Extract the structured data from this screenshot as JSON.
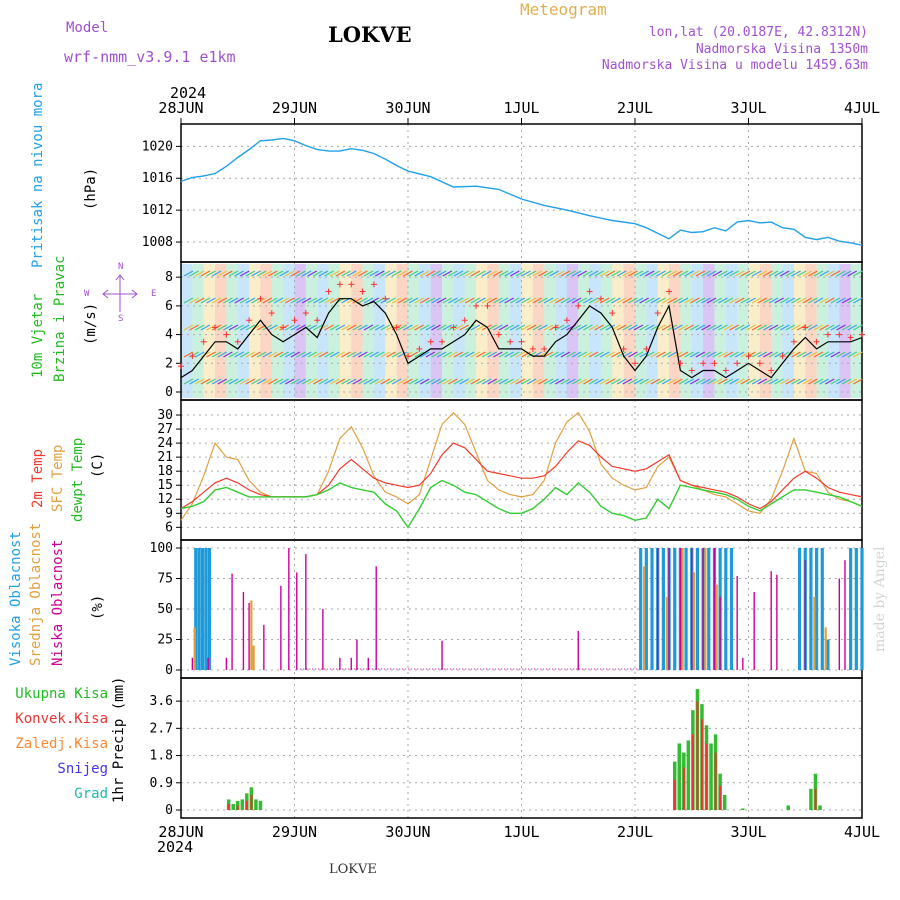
{
  "header": {
    "model_label": "Model",
    "model_name": "wrf-nmm_v3.9.1 e1km",
    "station": "LOKVE",
    "meteogram": "Meteogram",
    "lonlat": "lon,lat (20.0187E, 42.8312N)",
    "elevation": "Nadmorska Visina 1350m",
    "model_elevation": "Nadmorska Visina u modelu 1459.63m",
    "year_top": "2024",
    "year_bottom": "2024",
    "footer_station": "LOKVE",
    "credit": "made by Angel"
  },
  "colors": {
    "pressure": "#22a0e8",
    "temp2m": "#ef3b2c",
    "sfc": "#e0a040",
    "dew": "#33cc33",
    "wind_speed": "#000000",
    "gust": "#ff3030",
    "cloud_high": "#1f9ad8",
    "cloud_mid": "#e0a040",
    "cloud_low": "#cc0099",
    "precip_total": "#33bb33",
    "precip_conv": "#ee3333",
    "precip_frozen": "#ff8833",
    "snow": "#4433ee",
    "graupel": "#22bbaa",
    "grid": "#aaaaaa"
  },
  "x_ticks": [
    "28JUN",
    "29JUN",
    "30JUN",
    "1JUL",
    "2JUL",
    "3JUL",
    "4JUL"
  ],
  "labels": {
    "pressure": [
      "Pritisak na nivou mora",
      "(hPa)"
    ],
    "wind": [
      "10m Vjetar",
      "Brzina i Pravac",
      "(m/s)"
    ],
    "compass": {
      "n": "N",
      "w": "W",
      "e": "E",
      "s": "S"
    },
    "temp": [
      "2m Temp",
      "SFC Temp",
      "dewpt Temp",
      "(C)"
    ],
    "cloud": [
      "Visoka Oblacnost",
      "Srednja Oblacnost",
      "Niska Oblacnost",
      "(%)"
    ],
    "precip_legend": [
      "Ukupna Kisa",
      "Konvek.Kisa",
      "Zaledj.Kisa",
      "Snijeg",
      "Grad"
    ],
    "precip_axis": "1hr Precip (mm)"
  },
  "chart_data": [
    {
      "type": "line",
      "name": "pressure",
      "x_range": [
        0,
        6
      ],
      "ylim": [
        1006.5,
        1021.8
      ],
      "yticks": [
        "1008",
        "1012",
        "1016",
        "1020"
      ],
      "x": [
        0,
        0.1,
        0.2,
        0.3,
        0.4,
        0.5,
        0.6,
        0.7,
        0.8,
        0.9,
        1.0,
        1.1,
        1.2,
        1.3,
        1.4,
        1.5,
        1.6,
        1.7,
        1.8,
        1.9,
        2.0,
        2.2,
        2.4,
        2.6,
        2.8,
        3.0,
        3.2,
        3.4,
        3.6,
        3.8,
        4.0,
        4.1,
        4.2,
        4.3,
        4.4,
        4.5,
        4.6,
        4.7,
        4.8,
        4.9,
        5.0,
        5.1,
        5.2,
        5.3,
        5.4,
        5.5,
        5.6,
        5.7,
        5.8,
        5.9,
        6.0
      ],
      "y": [
        1015.6,
        1016.1,
        1016.3,
        1016.6,
        1017.5,
        1018.6,
        1019.6,
        1020.7,
        1020.8,
        1021.0,
        1020.7,
        1020.1,
        1019.6,
        1019.4,
        1019.4,
        1019.7,
        1019.5,
        1019.1,
        1018.4,
        1017.6,
        1016.9,
        1016.2,
        1014.9,
        1015.0,
        1014.6,
        1013.4,
        1012.6,
        1012.0,
        1011.3,
        1010.7,
        1010.3,
        1009.8,
        1009.1,
        1008.4,
        1009.5,
        1009.2,
        1009.3,
        1009.8,
        1009.4,
        1010.5,
        1010.7,
        1010.4,
        1010.5,
        1009.8,
        1009.6,
        1008.6,
        1008.3,
        1008.6,
        1008.1,
        1007.9,
        1007.6
      ]
    },
    {
      "type": "line",
      "name": "wind",
      "x_range": [
        0,
        6
      ],
      "ylim": [
        0,
        8.5
      ],
      "yticks": [
        "0",
        "2",
        "4",
        "6",
        "8"
      ],
      "x": [
        0,
        0.1,
        0.2,
        0.3,
        0.4,
        0.5,
        0.6,
        0.7,
        0.8,
        0.9,
        1.0,
        1.1,
        1.2,
        1.3,
        1.4,
        1.5,
        1.6,
        1.7,
        1.8,
        1.9,
        2.0,
        2.1,
        2.2,
        2.3,
        2.4,
        2.5,
        2.6,
        2.7,
        2.8,
        2.9,
        3.0,
        3.1,
        3.2,
        3.3,
        3.4,
        3.5,
        3.6,
        3.7,
        3.8,
        3.9,
        4.0,
        4.1,
        4.2,
        4.3,
        4.4,
        4.5,
        4.6,
        4.7,
        4.8,
        4.9,
        5.0,
        5.1,
        5.2,
        5.3,
        5.4,
        5.5,
        5.6,
        5.7,
        5.8,
        5.9,
        6.0
      ],
      "series": [
        {
          "role": "speed",
          "values": [
            1.0,
            1.5,
            2.5,
            3.5,
            3.5,
            3.0,
            4.0,
            5.0,
            4.0,
            3.5,
            4.0,
            4.5,
            3.8,
            5.5,
            6.5,
            6.5,
            6.0,
            6.3,
            5.5,
            4.0,
            2.0,
            2.5,
            3.0,
            3.0,
            3.5,
            4.0,
            5.0,
            4.5,
            3.0,
            3.0,
            3.0,
            2.5,
            2.5,
            3.5,
            4.0,
            5.0,
            6.0,
            5.5,
            4.5,
            2.5,
            1.5,
            2.5,
            4.5,
            6.0,
            1.5,
            1.0,
            1.5,
            1.5,
            1.0,
            1.5,
            2.0,
            1.5,
            1.0,
            2.0,
            3.0,
            3.8,
            3.0,
            3.5,
            3.5,
            3.5,
            3.8
          ]
        },
        {
          "role": "gust",
          "values": [
            1.8,
            2.5,
            3.5,
            4.5,
            4.0,
            3.5,
            5.0,
            6.5,
            5.5,
            4.5,
            5.0,
            5.5,
            5.0,
            7.0,
            7.5,
            7.5,
            7.0,
            7.5,
            6.5,
            4.5,
            2.5,
            3.0,
            3.5,
            3.5,
            4.5,
            5.0,
            6.0,
            6.0,
            4.0,
            3.5,
            3.5,
            3.0,
            3.0,
            4.5,
            5.0,
            6.0,
            7.0,
            6.5,
            5.5,
            3.0,
            2.0,
            3.0,
            5.5,
            7.0,
            2.0,
            1.5,
            2.0,
            2.0,
            1.5,
            2.0,
            2.5,
            2.0,
            1.5,
            2.5,
            3.5,
            4.5,
            3.5,
            4.0,
            4.0,
            3.8,
            4.0
          ]
        }
      ]
    },
    {
      "type": "line",
      "name": "temperature",
      "x_range": [
        0,
        6
      ],
      "ylim": [
        5,
        31.5
      ],
      "yticks": [
        "6",
        "9",
        "12",
        "15",
        "18",
        "21",
        "24",
        "27",
        "30"
      ],
      "x": [
        0,
        0.1,
        0.2,
        0.3,
        0.4,
        0.5,
        0.6,
        0.7,
        0.8,
        0.9,
        1.0,
        1.1,
        1.2,
        1.3,
        1.4,
        1.5,
        1.6,
        1.7,
        1.8,
        1.9,
        2.0,
        2.1,
        2.2,
        2.3,
        2.4,
        2.5,
        2.6,
        2.7,
        2.8,
        2.9,
        3.0,
        3.1,
        3.2,
        3.3,
        3.4,
        3.5,
        3.6,
        3.7,
        3.8,
        3.9,
        4.0,
        4.1,
        4.2,
        4.3,
        4.4,
        4.5,
        4.6,
        4.7,
        4.8,
        4.9,
        5.0,
        5.1,
        5.2,
        5.3,
        5.4,
        5.5,
        5.6,
        5.7,
        5.8,
        5.9,
        6.0
      ],
      "series": [
        {
          "role": "t2m",
          "values": [
            10.0,
            11.5,
            13.5,
            15.5,
            16.5,
            15.5,
            14.0,
            13.0,
            12.5,
            12.5,
            12.5,
            12.5,
            13.0,
            15.0,
            18.5,
            20.5,
            18.5,
            16.5,
            15.5,
            15.0,
            14.5,
            15.0,
            17.5,
            21.5,
            24.0,
            23.0,
            20.5,
            18.0,
            17.5,
            17.0,
            16.5,
            16.5,
            17.0,
            19.0,
            22.0,
            24.5,
            23.5,
            21.0,
            19.0,
            18.5,
            18.0,
            18.5,
            20.0,
            21.5,
            16.0,
            15.0,
            14.5,
            14.0,
            13.5,
            12.5,
            11.0,
            10.0,
            11.5,
            14.0,
            16.5,
            18.0,
            16.5,
            14.5,
            13.5,
            13.0,
            12.5
          ]
        },
        {
          "role": "sfc",
          "values": [
            7.5,
            11.0,
            17.0,
            24.0,
            21.0,
            20.5,
            16.0,
            13.5,
            12.5,
            12.5,
            12.5,
            12.5,
            13.0,
            18.0,
            25.0,
            27.5,
            23.0,
            17.0,
            13.5,
            12.5,
            11.0,
            13.0,
            20.5,
            28.0,
            30.5,
            28.0,
            22.0,
            16.0,
            14.0,
            13.0,
            12.5,
            13.0,
            16.0,
            24.0,
            28.5,
            30.5,
            26.5,
            19.5,
            16.5,
            15.0,
            14.0,
            14.5,
            19.0,
            21.0,
            16.0,
            15.0,
            14.0,
            13.0,
            12.5,
            11.0,
            9.5,
            9.0,
            12.0,
            18.0,
            25.0,
            18.0,
            17.5,
            13.5,
            12.0,
            11.5,
            10.5
          ]
        },
        {
          "role": "dew",
          "values": [
            10.0,
            10.5,
            11.5,
            14.0,
            14.5,
            13.5,
            12.5,
            12.5,
            12.5,
            12.5,
            12.5,
            12.5,
            13.0,
            14.0,
            15.5,
            14.5,
            14.0,
            13.5,
            11.0,
            9.5,
            6.0,
            10.0,
            14.5,
            16.0,
            15.0,
            13.5,
            13.0,
            11.5,
            10.0,
            9.0,
            9.0,
            10.0,
            12.0,
            14.5,
            13.0,
            15.5,
            13.5,
            10.5,
            9.0,
            8.5,
            7.5,
            8.0,
            12.0,
            10.0,
            15.0,
            14.5,
            14.0,
            13.5,
            13.0,
            12.0,
            10.5,
            9.5,
            11.0,
            12.5,
            14.0,
            14.0,
            13.5,
            13.0,
            12.5,
            11.5,
            10.5
          ]
        }
      ]
    },
    {
      "type": "bar",
      "name": "cloud_cover",
      "x_range": [
        0,
        6
      ],
      "ylim": [
        0,
        100
      ],
      "yticks": [
        "0",
        "25",
        "50",
        "75",
        "100"
      ],
      "series": [
        {
          "role": "high",
          "bars": [
            [
              0.13,
              100
            ],
            [
              0.16,
              100
            ],
            [
              0.19,
              100
            ],
            [
              0.22,
              100
            ],
            [
              0.25,
              100
            ],
            [
              4.05,
              100
            ],
            [
              4.1,
              100
            ],
            [
              4.15,
              100
            ],
            [
              4.2,
              100
            ],
            [
              4.25,
              100
            ],
            [
              4.3,
              100
            ],
            [
              4.35,
              100
            ],
            [
              4.4,
              100
            ],
            [
              4.45,
              100
            ],
            [
              4.5,
              100
            ],
            [
              4.55,
              100
            ],
            [
              4.6,
              100
            ],
            [
              4.65,
              100
            ],
            [
              4.7,
              100
            ],
            [
              4.75,
              100
            ],
            [
              4.8,
              100
            ],
            [
              4.85,
              100
            ],
            [
              5.45,
              100
            ],
            [
              5.5,
              100
            ],
            [
              5.55,
              100
            ],
            [
              5.6,
              100
            ],
            [
              5.65,
              100
            ],
            [
              5.7,
              25
            ],
            [
              5.9,
              100
            ],
            [
              5.95,
              100
            ],
            [
              6.0,
              100
            ]
          ]
        },
        {
          "role": "mid",
          "bars": [
            [
              0.12,
              35
            ],
            [
              0.62,
              57
            ],
            [
              0.64,
              20
            ],
            [
              4.08,
              85
            ],
            [
              4.28,
              60
            ],
            [
              4.42,
              100
            ],
            [
              4.52,
              80
            ],
            [
              4.62,
              100
            ],
            [
              4.72,
              70
            ],
            [
              5.58,
              60
            ],
            [
              5.68,
              35
            ]
          ]
        },
        {
          "role": "low",
          "bars": [
            [
              0.1,
              10
            ],
            [
              0.24,
              10
            ],
            [
              0.4,
              10
            ],
            [
              0.45,
              79
            ],
            [
              0.55,
              64
            ],
            [
              0.6,
              55
            ],
            [
              0.73,
              37
            ],
            [
              0.88,
              69
            ],
            [
              0.95,
              100
            ],
            [
              1.02,
              80
            ],
            [
              1.1,
              95
            ],
            [
              1.25,
              50
            ],
            [
              1.4,
              10
            ],
            [
              1.5,
              10
            ],
            [
              1.55,
              25
            ],
            [
              1.65,
              10
            ],
            [
              1.72,
              85
            ],
            [
              2.3,
              24
            ],
            [
              3.5,
              32
            ],
            [
              4.2,
              100
            ],
            [
              4.3,
              100
            ],
            [
              4.4,
              100
            ],
            [
              4.5,
              100
            ],
            [
              4.6,
              100
            ],
            [
              4.7,
              100
            ],
            [
              4.75,
              60
            ],
            [
              4.9,
              77
            ],
            [
              4.95,
              10
            ],
            [
              5.05,
              64
            ],
            [
              5.2,
              81
            ],
            [
              5.25,
              78
            ],
            [
              5.5,
              90
            ],
            [
              5.8,
              75
            ],
            [
              5.85,
              90
            ]
          ]
        }
      ]
    },
    {
      "type": "bar",
      "name": "precipitation",
      "x_range": [
        0,
        6
      ],
      "ylim": [
        0,
        4.1
      ],
      "yticks": [
        "0",
        "0.9",
        "1.8",
        "2.7",
        "3.6"
      ],
      "series": [
        {
          "role": "total",
          "bars": [
            [
              0.42,
              0.35
            ],
            [
              0.46,
              0.2
            ],
            [
              0.5,
              0.3
            ],
            [
              0.54,
              0.35
            ],
            [
              0.58,
              0.55
            ],
            [
              0.62,
              0.75
            ],
            [
              0.66,
              0.35
            ],
            [
              0.7,
              0.3
            ],
            [
              4.35,
              1.6
            ],
            [
              4.39,
              2.2
            ],
            [
              4.43,
              1.9
            ],
            [
              4.47,
              2.3
            ],
            [
              4.51,
              3.3
            ],
            [
              4.55,
              4.0
            ],
            [
              4.59,
              3.5
            ],
            [
              4.63,
              2.8
            ],
            [
              4.67,
              2.2
            ],
            [
              4.71,
              2.5
            ],
            [
              4.75,
              1.2
            ],
            [
              4.79,
              0.5
            ],
            [
              4.95,
              0.05
            ],
            [
              5.35,
              0.15
            ],
            [
              5.55,
              0.7
            ],
            [
              5.59,
              1.2
            ],
            [
              5.63,
              0.15
            ]
          ]
        },
        {
          "role": "convective",
          "bars": [
            [
              0.42,
              0.2
            ],
            [
              0.5,
              0.15
            ],
            [
              0.58,
              0.3
            ],
            [
              0.62,
              0.5
            ],
            [
              4.35,
              1.0
            ],
            [
              4.43,
              1.4
            ],
            [
              4.51,
              2.5
            ],
            [
              4.55,
              3.6
            ],
            [
              4.59,
              3.0
            ],
            [
              4.63,
              2.2
            ],
            [
              4.71,
              1.9
            ],
            [
              4.75,
              0.8
            ],
            [
              5.59,
              0.7
            ]
          ]
        }
      ]
    }
  ]
}
